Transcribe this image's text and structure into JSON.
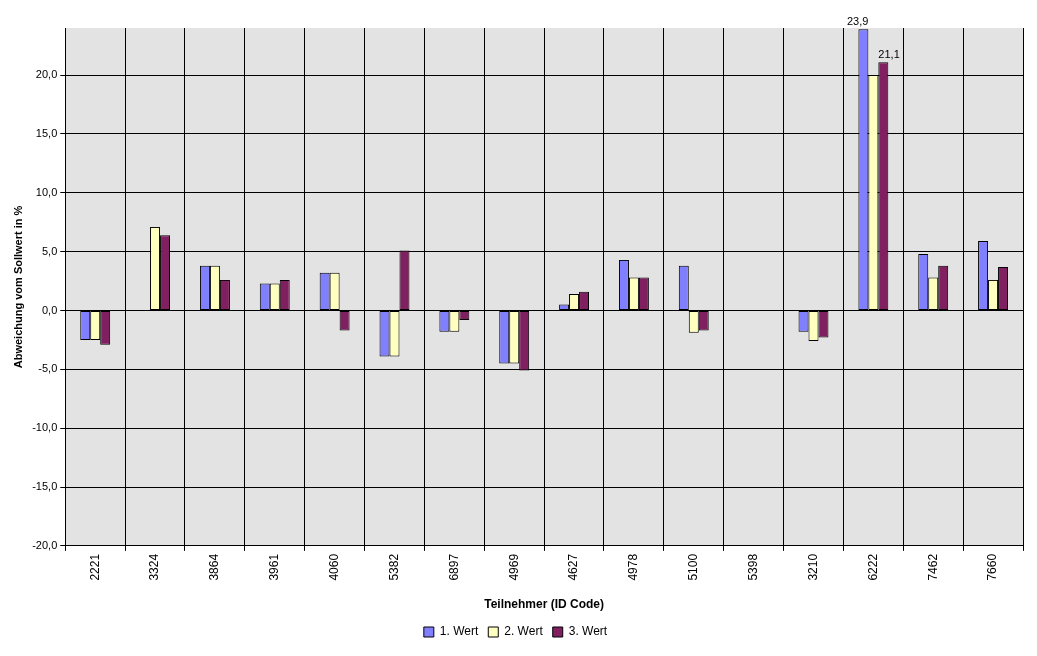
{
  "chart_data": {
    "type": "bar",
    "xlabel": "Teilnehmer (ID Code)",
    "ylabel": "Abweichung vom Sollwert in %",
    "categories": [
      "2221",
      "3324",
      "3864",
      "3961",
      "4060",
      "5382",
      "6897",
      "4969",
      "4627",
      "4978",
      "5100",
      "5398",
      "3210",
      "6222",
      "7462",
      "7660"
    ],
    "series": [
      {
        "name": "1. Wert",
        "color": "#8080ff",
        "values": [
          -2.5,
          null,
          3.8,
          2.3,
          3.2,
          -3.9,
          -1.8,
          -4.5,
          0.5,
          4.3,
          3.8,
          null,
          -1.8,
          23.9,
          4.8,
          5.9
        ],
        "value_labels": [
          null,
          null,
          null,
          null,
          null,
          null,
          null,
          null,
          null,
          null,
          null,
          null,
          null,
          "23,9",
          null,
          null
        ]
      },
      {
        "name": "2. Wert",
        "color": "#ffffc0",
        "values": [
          -2.5,
          7.1,
          3.8,
          2.3,
          3.2,
          -3.9,
          -1.8,
          -4.5,
          1.4,
          2.8,
          -1.9,
          null,
          -2.6,
          20.0,
          2.8,
          2.6
        ]
      },
      {
        "name": "3. Wert",
        "color": "#802060",
        "values": [
          -2.9,
          6.4,
          2.6,
          2.6,
          -1.7,
          5.1,
          -0.8,
          -5.1,
          1.6,
          2.8,
          -1.7,
          null,
          -2.3,
          21.1,
          3.8,
          3.7
        ],
        "value_labels": [
          null,
          null,
          null,
          null,
          null,
          null,
          null,
          null,
          null,
          null,
          null,
          null,
          null,
          "21,1",
          null,
          null
        ]
      }
    ],
    "ylim": [
      -20,
      24
    ],
    "yticks": [
      {
        "value": -20,
        "label": "-20,0"
      },
      {
        "value": -15,
        "label": "-15,0"
      },
      {
        "value": -10,
        "label": "-10,0"
      },
      {
        "value": -5,
        "label": "-5,0"
      },
      {
        "value": 0,
        "label": "0,0"
      },
      {
        "value": 5,
        "label": "5,0"
      },
      {
        "value": 10,
        "label": "10,0"
      },
      {
        "value": 15,
        "label": "15,0"
      },
      {
        "value": 20,
        "label": "20,0"
      }
    ],
    "grid": true,
    "legend": "bottom"
  }
}
